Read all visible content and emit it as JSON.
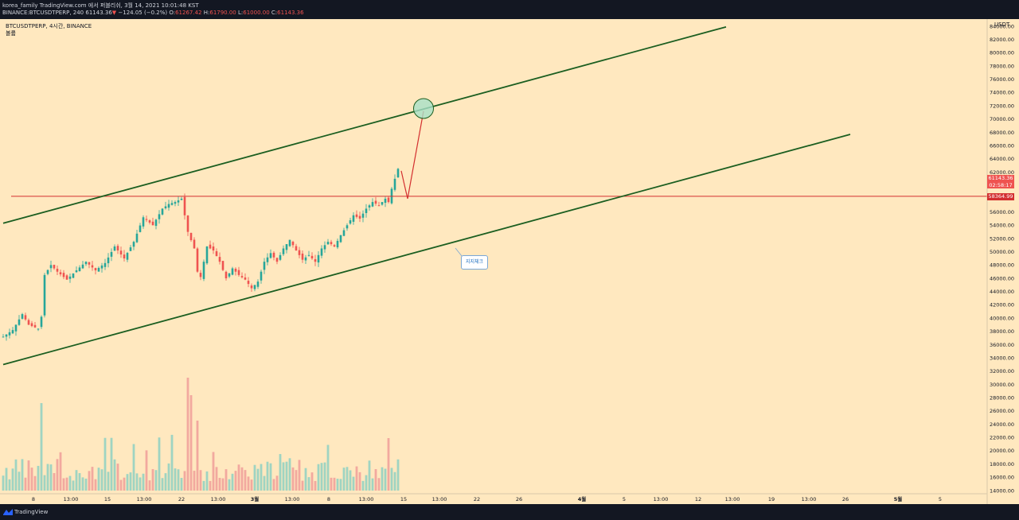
{
  "header": {
    "line1": "korea_family TradingView.com 에서 퍼블리쉬, 3월 14, 2021 10:01:48 KST",
    "symbol": "BINANCE:BTCUSDTPERP, 240",
    "last": "61143.36",
    "arrow": "▼",
    "change": "−124.05 (−0.2%)",
    "o_label": "O:",
    "o": "61267.42",
    "h_label": "H:",
    "h": "61790.00",
    "l_label": "L:",
    "l": "61000.00",
    "c_label": "C:",
    "c": "61143.36"
  },
  "legend": {
    "line1": "BTCUSDTPERP, 4시간, BINANCE",
    "line2": "볼륨"
  },
  "axis": {
    "currency": "USDT",
    "price_tag": "61143.36",
    "countdown": "02:58:17",
    "level_tag": "58364.99"
  },
  "annotation": {
    "text": "지지체크"
  },
  "footer": {
    "brand": "TradingView"
  },
  "colors": {
    "up": "#26a69a",
    "down": "#ef5350",
    "trend": "#1b5e20",
    "level": "#d32f2f",
    "background": "#ffe8bf"
  },
  "chart_data": {
    "type": "candlestick",
    "ylim": [
      13000,
      85000
    ],
    "y_ticks": [
      14000,
      16000,
      18000,
      20000,
      22000,
      24000,
      26000,
      28000,
      30000,
      32000,
      34000,
      36000,
      38000,
      40000,
      42000,
      44000,
      46000,
      48000,
      50000,
      52000,
      54000,
      56000,
      58000,
      60000,
      62000,
      64000,
      66000,
      68000,
      70000,
      72000,
      74000,
      76000,
      78000,
      80000,
      82000,
      84000
    ],
    "x_tick_labels": [
      "8",
      "13:00",
      "15",
      "13:00",
      "22",
      "13:00",
      "3월",
      "13:00",
      "8",
      "13:00",
      "15",
      "13:00",
      "22",
      "26",
      "4월",
      "5",
      "13:00",
      "12",
      "13:00",
      "19",
      "13:00",
      "26",
      "5월",
      "5"
    ],
    "price_path": [
      {
        "t": 0,
        "p": 37200
      },
      {
        "t": 3,
        "p": 38200
      },
      {
        "t": 6,
        "p": 40600
      },
      {
        "t": 8,
        "p": 39000
      },
      {
        "t": 11,
        "p": 38400
      },
      {
        "t": 12,
        "p": 40200
      },
      {
        "t": 13,
        "p": 46500
      },
      {
        "t": 15,
        "p": 48000
      },
      {
        "t": 17,
        "p": 47000
      },
      {
        "t": 20,
        "p": 45800
      },
      {
        "t": 23,
        "p": 47200
      },
      {
        "t": 26,
        "p": 48500
      },
      {
        "t": 29,
        "p": 47200
      },
      {
        "t": 32,
        "p": 48300
      },
      {
        "t": 35,
        "p": 50800
      },
      {
        "t": 38,
        "p": 49000
      },
      {
        "t": 41,
        "p": 51500
      },
      {
        "t": 44,
        "p": 55200
      },
      {
        "t": 47,
        "p": 54000
      },
      {
        "t": 50,
        "p": 56500
      },
      {
        "t": 52,
        "p": 57200
      },
      {
        "t": 54,
        "p": 57500
      },
      {
        "t": 56,
        "p": 58000
      },
      {
        "t": 57,
        "p": 55500
      },
      {
        "t": 58,
        "p": 53000
      },
      {
        "t": 60,
        "p": 50500
      },
      {
        "t": 61,
        "p": 47000
      },
      {
        "t": 62,
        "p": 46200
      },
      {
        "t": 63,
        "p": 48500
      },
      {
        "t": 64,
        "p": 50800
      },
      {
        "t": 66,
        "p": 50200
      },
      {
        "t": 68,
        "p": 48500
      },
      {
        "t": 70,
        "p": 46000
      },
      {
        "t": 72,
        "p": 47500
      },
      {
        "t": 74,
        "p": 46500
      },
      {
        "t": 76,
        "p": 45800
      },
      {
        "t": 78,
        "p": 44500
      },
      {
        "t": 80,
        "p": 45500
      },
      {
        "t": 82,
        "p": 48500
      },
      {
        "t": 84,
        "p": 49800
      },
      {
        "t": 86,
        "p": 48500
      },
      {
        "t": 88,
        "p": 50500
      },
      {
        "t": 90,
        "p": 51800
      },
      {
        "t": 92,
        "p": 50200
      },
      {
        "t": 94,
        "p": 48800
      },
      {
        "t": 96,
        "p": 49500
      },
      {
        "t": 98,
        "p": 48500
      },
      {
        "t": 100,
        "p": 50500
      },
      {
        "t": 102,
        "p": 51500
      },
      {
        "t": 104,
        "p": 50800
      },
      {
        "t": 106,
        "p": 52500
      },
      {
        "t": 108,
        "p": 54000
      },
      {
        "t": 110,
        "p": 55500
      },
      {
        "t": 112,
        "p": 55000
      },
      {
        "t": 114,
        "p": 56500
      },
      {
        "t": 116,
        "p": 57500
      },
      {
        "t": 118,
        "p": 57000
      },
      {
        "t": 120,
        "p": 58000
      },
      {
        "t": 121,
        "p": 57500
      },
      {
        "t": 122,
        "p": 59500
      },
      {
        "t": 123,
        "p": 61000
      },
      {
        "t": 124,
        "p": 62500
      },
      {
        "t": 125,
        "p": 61143
      }
    ],
    "volume_bars": 125,
    "horizontal_level": 58364.99,
    "trendlines": [
      {
        "name": "",
        "from": {
          "t": 0,
          "p": 54300
        },
        "to": {
          "t": 227,
          "p": 83900
        }
      },
      {
        "name": "",
        "from": {
          "t": 0,
          "p": 33000
        },
        "to": {
          "t": 266,
          "p": 67700
        }
      }
    ],
    "projection": {
      "from": {
        "t": 127,
        "p": 58000
      },
      "to": {
        "t": 132,
        "p": 71200
      }
    },
    "target_circle": {
      "t": 132,
      "p": 71600
    }
  }
}
